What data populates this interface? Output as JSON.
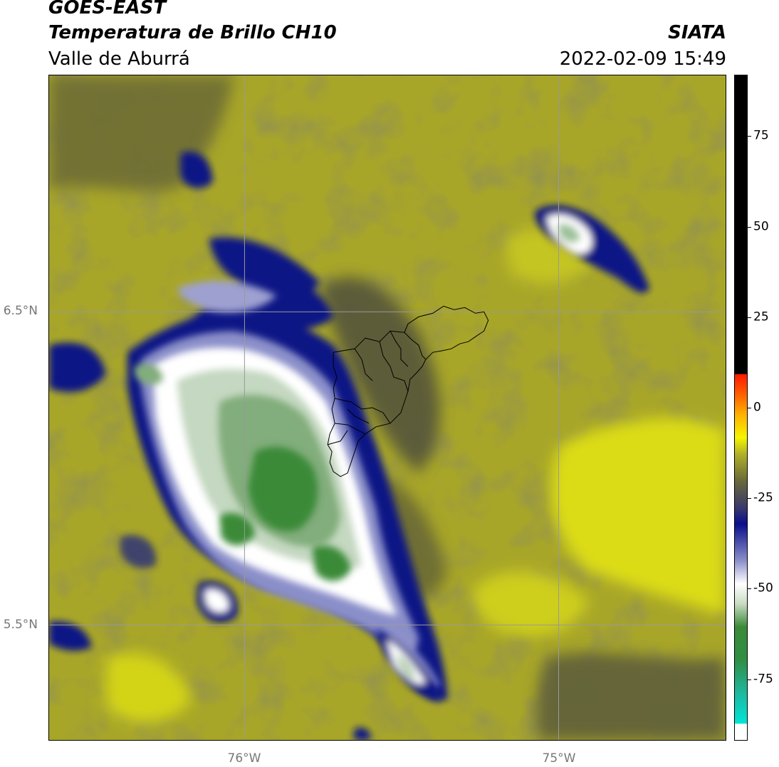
{
  "header": {
    "satellite": "GOES-EAST",
    "product": "Temperatura de Brillo CH10",
    "region": "Valle de Aburrá",
    "agency": "SIATA",
    "datetime": "2022-02-09 15:49"
  },
  "map": {
    "lat_labels": [
      {
        "text": "6.5°N",
        "value": 6.5
      },
      {
        "text": "5.5°N",
        "value": 5.5
      }
    ],
    "lon_labels": [
      {
        "text": "76°W",
        "value": -76.0
      },
      {
        "text": "75°W",
        "value": -75.0
      }
    ],
    "extent": {
      "lon_min": -76.62,
      "lon_max": -74.47,
      "lat_min": 5.13,
      "lat_max": 7.25
    },
    "gridline_color": "#9a9a9a",
    "boundary_color": "#000000",
    "cloud_top_features": [
      {
        "name": "main convective system",
        "center_lon": -76.0,
        "center_lat": 6.1,
        "min_temp_c": -70
      },
      {
        "name": "northeast cell",
        "center_lon": -75.0,
        "center_lat": 6.8,
        "min_temp_c": -58
      },
      {
        "name": "southern tail",
        "center_lon": -75.55,
        "center_lat": 5.35,
        "min_temp_c": -55
      }
    ]
  },
  "colorbar": {
    "ticks": [
      "75",
      "50",
      "25",
      "0",
      "-25",
      "-50",
      "-75"
    ],
    "tick_values": [
      75,
      50,
      25,
      0,
      -25,
      -50,
      -75
    ],
    "range": [
      -92,
      92
    ],
    "palette": {
      "below_min": "#ffffff",
      "cyan": "#00e5d5",
      "green": "#3b8a38",
      "light_green": "#c9dcc3",
      "white": "#ffffff",
      "blue": "#0a0f8c",
      "olive": "#5a5a3c",
      "yellow_olive": "#b0b029",
      "yellow": "#f5f500",
      "orange": "#ff8c00",
      "red": "#ff1a00",
      "black": "#000000"
    }
  }
}
